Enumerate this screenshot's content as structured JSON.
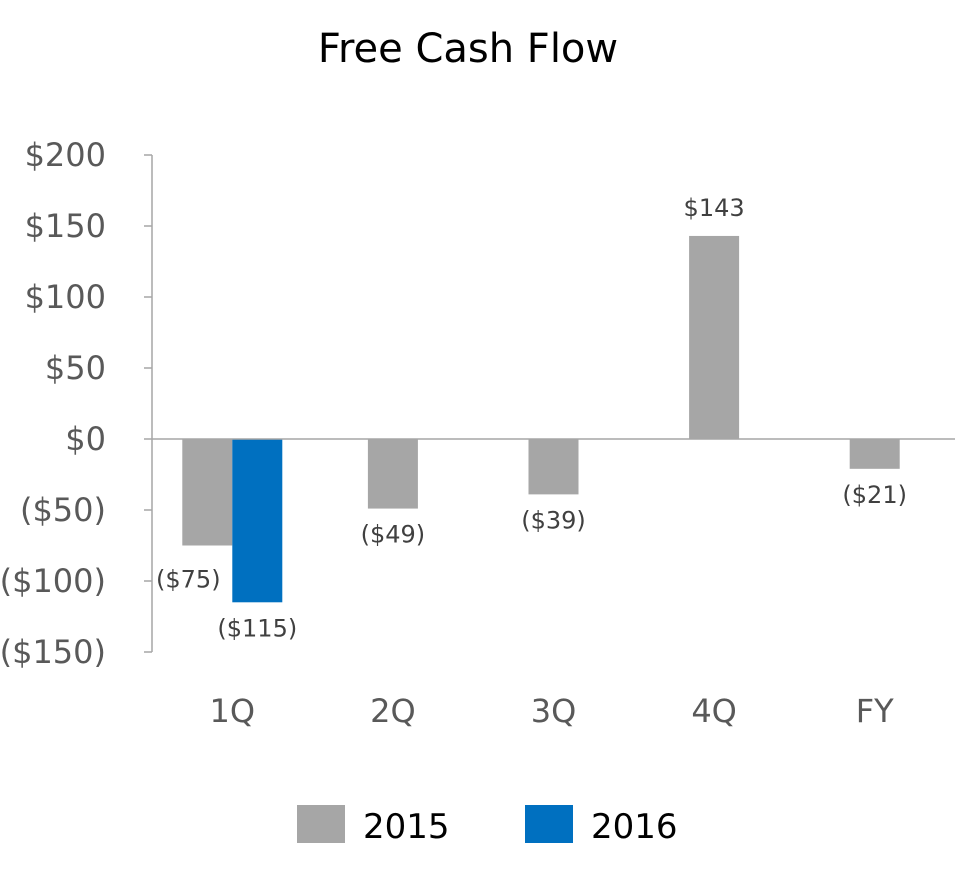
{
  "chart_data": {
    "type": "bar",
    "title": "Free Cash Flow",
    "categories": [
      "1Q",
      "2Q",
      "3Q",
      "4Q",
      "FY"
    ],
    "series": [
      {
        "name": "2015",
        "color": "#a6a6a6",
        "values": [
          -75,
          -49,
          -39,
          143,
          -21
        ],
        "labels": [
          "($75)",
          "($49)",
          "($39)",
          "$143",
          "($21)"
        ]
      },
      {
        "name": "2016",
        "color": "#0070c0",
        "values": [
          -115,
          null,
          null,
          null,
          null
        ],
        "labels": [
          "($115)",
          "",
          "",
          "",
          ""
        ]
      }
    ],
    "ylim": [
      -150,
      200
    ],
    "yticks": [
      200,
      150,
      100,
      50,
      0,
      -50,
      -100,
      -150
    ],
    "ytick_labels": [
      "$200",
      "$150",
      "$100",
      "$50",
      "$0",
      "($50)",
      "($100)",
      "($150)"
    ],
    "legend": "bottom",
    "grid": false
  }
}
